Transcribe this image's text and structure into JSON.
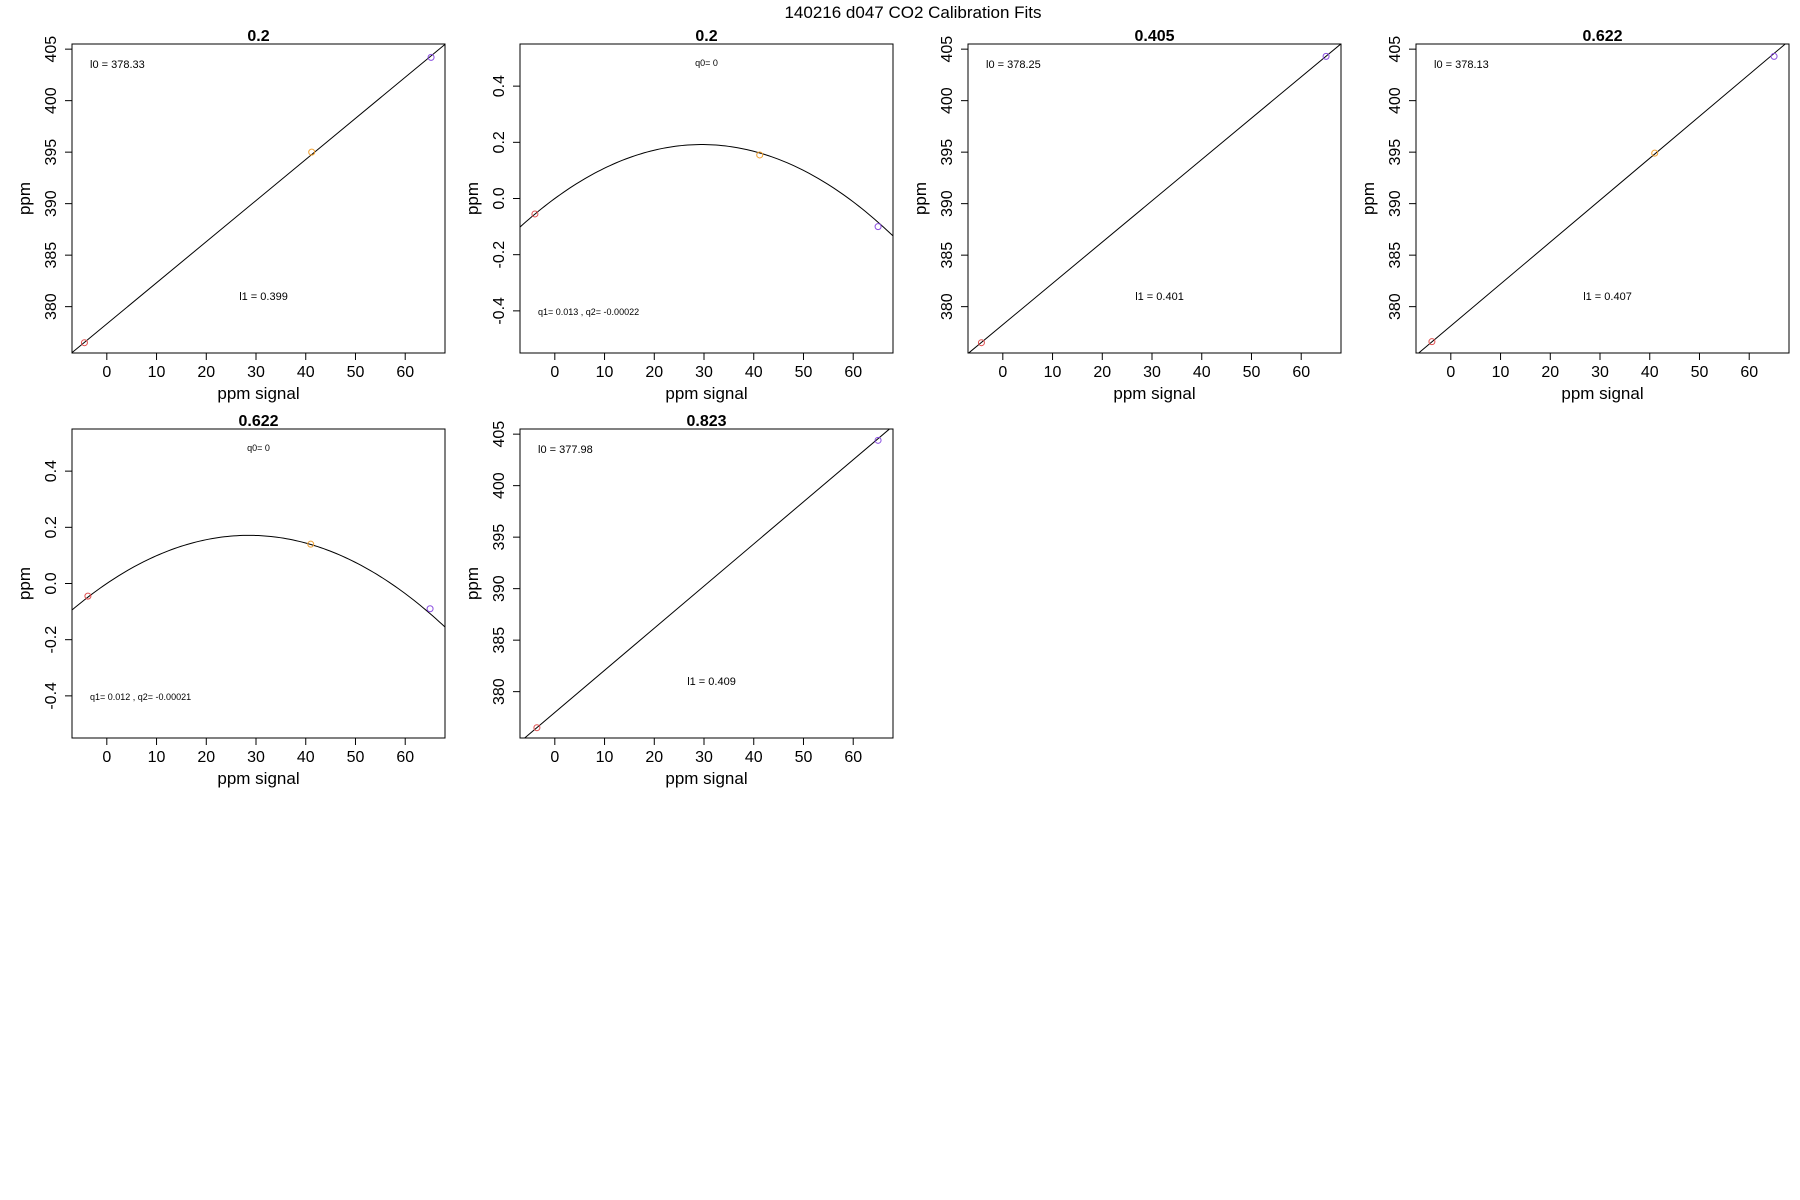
{
  "page": {
    "title": "140216   d047   CO2 Calibration Fits"
  },
  "chart_data": [
    {
      "type": "scatter",
      "title": "0.2",
      "xlabel": "ppm signal",
      "ylabel": "ppm",
      "xlim": [
        -7,
        68
      ],
      "ylim": [
        375.5,
        405.5
      ],
      "x_ticks": [
        0,
        10,
        20,
        30,
        40,
        50,
        60
      ],
      "y_ticks": [
        380,
        385,
        390,
        395,
        400,
        405
      ],
      "y_tick_labels": [
        "380",
        "385",
        "390",
        "395",
        "400",
        "405"
      ],
      "fit": {
        "kind": "linear",
        "intercept": 378.33,
        "slope": 0.399
      },
      "points": [
        {
          "x": -4.5,
          "y": 376.5,
          "color": "#e05050"
        },
        {
          "x": 41.2,
          "y": 395.0,
          "color": "#f0a030"
        },
        {
          "x": 65.2,
          "y": 404.2,
          "color": "#8a4ee0"
        }
      ],
      "annotations": [
        {
          "text": "l0 =  378.33",
          "position": "top-left"
        },
        {
          "text": "l1 =  0.399",
          "position": "bottom-center"
        }
      ],
      "grid": false
    },
    {
      "type": "scatter",
      "title": "0.2",
      "xlabel": "ppm signal",
      "ylabel": "ppm",
      "xlim": [
        -7,
        68
      ],
      "ylim": [
        -0.55,
        0.55
      ],
      "x_ticks": [
        0,
        10,
        20,
        30,
        40,
        50,
        60
      ],
      "y_ticks": [
        -0.4,
        -0.2,
        0.0,
        0.2,
        0.4
      ],
      "y_tick_labels": [
        "-0.4",
        "-0.2",
        "0.0",
        "0.2",
        "0.4"
      ],
      "fit": {
        "kind": "quadratic",
        "q0": 0,
        "q1": 0.013,
        "q2": -0.00022
      },
      "points": [
        {
          "x": -4.0,
          "y": -0.055,
          "color": "#e05050"
        },
        {
          "x": 41.2,
          "y": 0.155,
          "color": "#f0a030"
        },
        {
          "x": 65.0,
          "y": -0.1,
          "color": "#8a4ee0"
        }
      ],
      "annotations": [
        {
          "text": "q0= 0",
          "position": "top-center"
        },
        {
          "text": "q1= 0.013 , q2= -0.00022",
          "position": "bottom-left"
        }
      ],
      "grid": false
    },
    {
      "type": "scatter",
      "title": "0.405",
      "xlabel": "ppm signal",
      "ylabel": "ppm",
      "xlim": [
        -7,
        68
      ],
      "ylim": [
        375.5,
        405.5
      ],
      "x_ticks": [
        0,
        10,
        20,
        30,
        40,
        50,
        60
      ],
      "y_ticks": [
        380,
        385,
        390,
        395,
        400,
        405
      ],
      "y_tick_labels": [
        "380",
        "385",
        "390",
        "395",
        "400",
        "405"
      ],
      "fit": {
        "kind": "linear",
        "intercept": 378.25,
        "slope": 0.401
      },
      "points": [
        {
          "x": -4.3,
          "y": 376.5,
          "color": "#e05050"
        },
        {
          "x": 65.0,
          "y": 404.3,
          "color": "#8a4ee0"
        }
      ],
      "annotations": [
        {
          "text": "l0 =  378.25",
          "position": "top-left"
        },
        {
          "text": "l1 =  0.401",
          "position": "bottom-center"
        }
      ],
      "grid": false
    },
    {
      "type": "scatter",
      "title": "0.622",
      "xlabel": "ppm signal",
      "ylabel": "ppm",
      "xlim": [
        -7,
        68
      ],
      "ylim": [
        375.5,
        405.5
      ],
      "x_ticks": [
        0,
        10,
        20,
        30,
        40,
        50,
        60
      ],
      "y_ticks": [
        380,
        385,
        390,
        395,
        400,
        405
      ],
      "y_tick_labels": [
        "380",
        "385",
        "390",
        "395",
        "400",
        "405"
      ],
      "fit": {
        "kind": "linear",
        "intercept": 378.13,
        "slope": 0.407
      },
      "points": [
        {
          "x": -3.8,
          "y": 376.6,
          "color": "#e05050"
        },
        {
          "x": 41.0,
          "y": 394.9,
          "color": "#f0a030"
        },
        {
          "x": 65.0,
          "y": 404.3,
          "color": "#8a4ee0"
        }
      ],
      "annotations": [
        {
          "text": "l0 =  378.13",
          "position": "top-left"
        },
        {
          "text": "l1 =  0.407",
          "position": "bottom-center"
        }
      ],
      "grid": false
    },
    {
      "type": "scatter",
      "title": "0.622",
      "xlabel": "ppm signal",
      "ylabel": "ppm",
      "xlim": [
        -7,
        68
      ],
      "ylim": [
        -0.55,
        0.55
      ],
      "x_ticks": [
        0,
        10,
        20,
        30,
        40,
        50,
        60
      ],
      "y_ticks": [
        -0.4,
        -0.2,
        0.0,
        0.2,
        0.4
      ],
      "y_tick_labels": [
        "-0.4",
        "-0.2",
        "0.0",
        "0.2",
        "0.4"
      ],
      "fit": {
        "kind": "quadratic",
        "q0": 0,
        "q1": 0.012,
        "q2": -0.00021
      },
      "points": [
        {
          "x": -3.8,
          "y": -0.045,
          "color": "#e05050"
        },
        {
          "x": 41.0,
          "y": 0.14,
          "color": "#f0a030"
        },
        {
          "x": 65.0,
          "y": -0.09,
          "color": "#8a4ee0"
        }
      ],
      "annotations": [
        {
          "text": "q0= 0",
          "position": "top-center"
        },
        {
          "text": "q1= 0.012 , q2= -0.00021",
          "position": "bottom-left"
        }
      ],
      "grid": false
    },
    {
      "type": "scatter",
      "title": "0.823",
      "xlabel": "ppm signal",
      "ylabel": "ppm",
      "xlim": [
        -7,
        68
      ],
      "ylim": [
        375.5,
        405.5
      ],
      "x_ticks": [
        0,
        10,
        20,
        30,
        40,
        50,
        60
      ],
      "y_ticks": [
        380,
        385,
        390,
        395,
        400,
        405
      ],
      "y_tick_labels": [
        "380",
        "385",
        "390",
        "395",
        "400",
        "405"
      ],
      "fit": {
        "kind": "linear",
        "intercept": 377.98,
        "slope": 0.409
      },
      "points": [
        {
          "x": -3.6,
          "y": 376.5,
          "color": "#e05050"
        },
        {
          "x": 65.0,
          "y": 404.4,
          "color": "#8a4ee0"
        }
      ],
      "annotations": [
        {
          "text": "l0 =  377.98",
          "position": "top-left"
        },
        {
          "text": "l1 =  0.409",
          "position": "bottom-center"
        }
      ],
      "grid": false
    }
  ]
}
